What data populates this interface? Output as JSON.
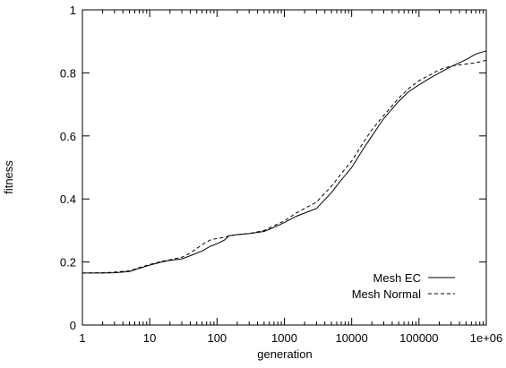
{
  "chart_data": {
    "type": "line",
    "title": "",
    "xlabel": "generation",
    "ylabel": "fitness",
    "xscale": "log",
    "xlim": [
      1,
      1000000
    ],
    "ylim": [
      0,
      1
    ],
    "grid": false,
    "legend_position": "bottom-right",
    "x_ticks": [
      {
        "value": 1,
        "label": "1"
      },
      {
        "value": 10,
        "label": "10"
      },
      {
        "value": 100,
        "label": "100"
      },
      {
        "value": 1000,
        "label": "1000"
      },
      {
        "value": 10000,
        "label": "10000"
      },
      {
        "value": 100000,
        "label": "100000"
      },
      {
        "value": 1000000,
        "label": "1e+06"
      }
    ],
    "y_ticks": [
      {
        "value": 0,
        "label": "0"
      },
      {
        "value": 0.2,
        "label": "0.2"
      },
      {
        "value": 0.4,
        "label": "0.4"
      },
      {
        "value": 0.6,
        "label": "0.6"
      },
      {
        "value": 0.8,
        "label": "0.8"
      },
      {
        "value": 1,
        "label": "1"
      }
    ],
    "series": [
      {
        "name": "Mesh EC",
        "style": "solid",
        "color": "#000000",
        "x": [
          1,
          2,
          3,
          5,
          7,
          10,
          15,
          20,
          30,
          40,
          60,
          80,
          100,
          130,
          150,
          200,
          300,
          500,
          700,
          1000,
          1500,
          2000,
          3000,
          5000,
          7000,
          10000,
          15000,
          20000,
          30000,
          50000,
          70000,
          100000,
          150000,
          200000,
          300000,
          500000,
          700000,
          1000000
        ],
        "y": [
          0.165,
          0.165,
          0.166,
          0.17,
          0.18,
          0.19,
          0.2,
          0.205,
          0.21,
          0.22,
          0.235,
          0.25,
          0.258,
          0.27,
          0.283,
          0.287,
          0.29,
          0.297,
          0.31,
          0.325,
          0.345,
          0.355,
          0.37,
          0.42,
          0.46,
          0.5,
          0.56,
          0.6,
          0.655,
          0.71,
          0.74,
          0.762,
          0.785,
          0.8,
          0.82,
          0.842,
          0.86,
          0.87
        ]
      },
      {
        "name": "Mesh Normal",
        "style": "dashed",
        "color": "#000000",
        "x": [
          1,
          2,
          3,
          5,
          7,
          10,
          15,
          20,
          30,
          40,
          60,
          80,
          100,
          130,
          150,
          200,
          300,
          500,
          700,
          1000,
          1500,
          2000,
          3000,
          5000,
          7000,
          10000,
          15000,
          20000,
          30000,
          50000,
          70000,
          100000,
          150000,
          200000,
          300000,
          500000,
          700000,
          1000000
        ],
        "y": [
          0.165,
          0.166,
          0.168,
          0.172,
          0.182,
          0.192,
          0.202,
          0.207,
          0.215,
          0.228,
          0.255,
          0.27,
          0.275,
          0.278,
          0.283,
          0.287,
          0.29,
          0.3,
          0.315,
          0.33,
          0.355,
          0.37,
          0.39,
          0.44,
          0.48,
          0.52,
          0.58,
          0.62,
          0.665,
          0.72,
          0.75,
          0.775,
          0.795,
          0.81,
          0.822,
          0.828,
          0.832,
          0.84
        ]
      }
    ]
  }
}
